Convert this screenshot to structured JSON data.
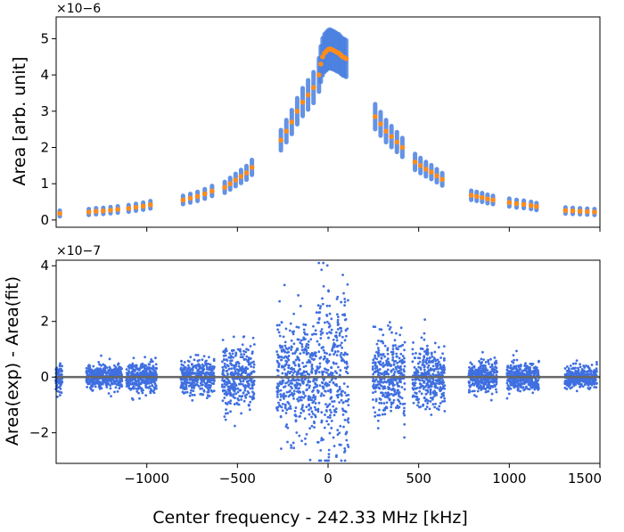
{
  "chart_data": [
    {
      "type": "scatter",
      "panel": "top",
      "ylabel": "Area [arb. unit]",
      "offset_label": "×10−6",
      "xlim": [
        -1500,
        1500
      ],
      "ylim": [
        -0.2,
        5.6
      ],
      "yticks": [
        0,
        1,
        2,
        3,
        4,
        5
      ],
      "xticks": [
        -1000,
        -500,
        0,
        500,
        1000,
        1500
      ],
      "grid": false,
      "colors": {
        "band": "#4a80e0",
        "points": "#ff8c1a"
      },
      "measurement_groups": [
        {
          "x": [
            -1480
          ],
          "y": [
            0.18
          ]
        },
        {
          "x": [
            -1320,
            -1280,
            -1240,
            -1200,
            -1160
          ],
          "y": [
            0.22,
            0.24,
            0.25,
            0.27,
            0.29
          ]
        },
        {
          "x": [
            -1100,
            -1060,
            -1020,
            -980
          ],
          "y": [
            0.32,
            0.35,
            0.38,
            0.42
          ]
        },
        {
          "x": [
            -800,
            -760,
            -720,
            -680,
            -640
          ],
          "y": [
            0.55,
            0.6,
            0.65,
            0.72,
            0.8
          ]
        },
        {
          "x": [
            -570,
            -540,
            -510,
            -480,
            -450,
            -420
          ],
          "y": [
            0.9,
            1.0,
            1.1,
            1.2,
            1.3,
            1.45
          ]
        },
        {
          "x": [
            -260,
            -230,
            -200,
            -170,
            -140,
            -110,
            -80
          ],
          "y": [
            2.2,
            2.45,
            2.7,
            3.0,
            3.25,
            3.45,
            3.65
          ]
        },
        {
          "x": [
            -50,
            -40,
            -30,
            -20,
            -10,
            0,
            10,
            20,
            30,
            40,
            50,
            60,
            70,
            80,
            90,
            100
          ],
          "y": [
            4.0,
            4.3,
            4.5,
            4.6,
            4.65,
            4.7,
            4.72,
            4.7,
            4.68,
            4.65,
            4.62,
            4.6,
            4.55,
            4.5,
            4.48,
            4.45
          ]
        },
        {
          "x": [
            260,
            290,
            320,
            350,
            380,
            410
          ],
          "y": [
            2.85,
            2.65,
            2.45,
            2.3,
            2.15,
            2.0
          ]
        },
        {
          "x": [
            480,
            510,
            540,
            570,
            600,
            630
          ],
          "y": [
            1.6,
            1.5,
            1.4,
            1.32,
            1.22,
            1.12
          ]
        },
        {
          "x": [
            790,
            820,
            850,
            880,
            910
          ],
          "y": [
            0.68,
            0.65,
            0.62,
            0.58,
            0.55
          ]
        },
        {
          "x": [
            1000,
            1040,
            1080,
            1120,
            1150
          ],
          "y": [
            0.48,
            0.45,
            0.43,
            0.4,
            0.37
          ]
        },
        {
          "x": [
            1310,
            1350,
            1390,
            1430,
            1470
          ],
          "y": [
            0.26,
            0.25,
            0.24,
            0.23,
            0.22
          ]
        }
      ]
    },
    {
      "type": "scatter",
      "panel": "bottom",
      "ylabel": "Area(exp) - Area(fit)",
      "xlabel": "Center frequency - 242.33 MHz [kHz]",
      "offset_label": "×10−7",
      "xlim": [
        -1500,
        1500
      ],
      "ylim": [
        -3.1,
        4.2
      ],
      "yticks": [
        -2,
        0,
        2,
        4
      ],
      "xticks": [
        -1000,
        -500,
        0,
        500,
        1000,
        1500
      ],
      "tick_labels": [
        "−1000",
        "−500",
        "0",
        "500",
        "1000",
        "1500"
      ],
      "grid": false,
      "zero_line": true,
      "colors": {
        "points": "#3f6fe0",
        "zero_line": "#666666"
      },
      "column_groups": [
        {
          "x_range": [
            -1500,
            -1470
          ],
          "spread": 0.6
        },
        {
          "x_range": [
            -1330,
            -1140
          ],
          "spread": 0.45
        },
        {
          "x_range": [
            -1110,
            -950
          ],
          "spread": 0.6
        },
        {
          "x_range": [
            -810,
            -630
          ],
          "spread": 0.75
        },
        {
          "x_range": [
            -580,
            -410
          ],
          "spread": 1.3
        },
        {
          "x_range": [
            -280,
            -70
          ],
          "spread": 2.2
        },
        {
          "x_range": [
            -60,
            110
          ],
          "spread": 3.4
        },
        {
          "x_range": [
            250,
            420
          ],
          "spread": 1.6
        },
        {
          "x_range": [
            470,
            640
          ],
          "spread": 1.2
        },
        {
          "x_range": [
            780,
            930
          ],
          "spread": 0.6
        },
        {
          "x_range": [
            990,
            1160
          ],
          "spread": 0.55
        },
        {
          "x_range": [
            1310,
            1480
          ],
          "spread": 0.4
        }
      ]
    }
  ]
}
